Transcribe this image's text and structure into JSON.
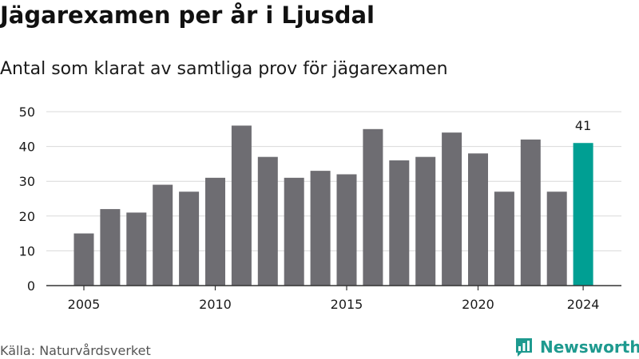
{
  "title": "Jägarexamen per år i Ljusdal",
  "subtitle": "Antal som klarat av samtliga prov för jägarexamen",
  "source": "Källa: Naturvårdsverket",
  "logo": {
    "text": "Newsworthy",
    "icon": "newsworthy-bar-chart-icon",
    "color": "#1e9a8f"
  },
  "colors": {
    "bar": "#6e6d72",
    "highlight": "#009f93",
    "grid": "#d9d9d9",
    "axis": "#333333",
    "text": "#1a1a1a"
  },
  "chart_data": {
    "type": "bar",
    "x": [
      2005,
      2006,
      2007,
      2008,
      2009,
      2010,
      2011,
      2012,
      2013,
      2014,
      2015,
      2016,
      2017,
      2018,
      2019,
      2020,
      2021,
      2022,
      2023,
      2024
    ],
    "values": [
      15,
      22,
      21,
      29,
      27,
      31,
      46,
      37,
      31,
      33,
      32,
      45,
      36,
      37,
      44,
      38,
      27,
      42,
      27,
      41
    ],
    "xticks": [
      2005,
      2010,
      2015,
      2020,
      2024
    ],
    "yticks": [
      0,
      10,
      20,
      30,
      40,
      50
    ],
    "ylim": [
      0,
      50
    ],
    "highlight_index": 19,
    "data_labels": [
      {
        "index": 19,
        "text": "41"
      }
    ],
    "grid": true,
    "legend": "none"
  }
}
